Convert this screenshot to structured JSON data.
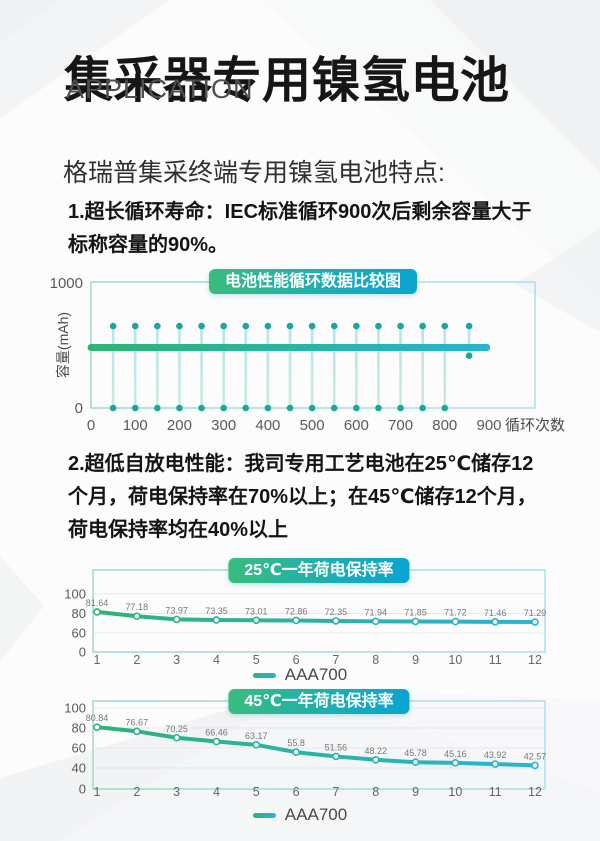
{
  "header": {
    "title": "集采器专用镍氢电池",
    "subtitle": "APPLICATION"
  },
  "intro": {
    "heading": "格瑞普集采终端专用镍氢电池特点:"
  },
  "features": {
    "item1": {
      "line1": "1.超长循环寿命：IEC标准循环900次后剩余容量大于",
      "line2": "标称容量的90%。"
    },
    "item2": {
      "line1": "2.超低自放电性能：我司专用工艺电池在25℃储存12",
      "line2": "个月，荷电保持率在70%以上；在45℃储存12个月，",
      "line3": "荷电保持率均在40%以上"
    }
  },
  "colors": {
    "accent_green": "#2fb375",
    "accent_cyan": "#25b5d8",
    "badge_gradient_start": "#3abc7e",
    "badge_gradient_end": "#0aa4d0",
    "marker_teal": "#1ba89a",
    "stem_light": "#b5e4ef",
    "stem_light2": "#c6ecdf",
    "grid": "#e4e7ea",
    "plot_border_green": "#8fd6b8",
    "plot_border_cyan": "#9edcec",
    "axis_text": "#5a5a5a",
    "data_label_text": "#777777"
  },
  "chart_data": [
    {
      "type": "stem",
      "title": "电池性能循环数据比较图",
      "xlabel": "循环次数",
      "ylabel": "容量(mAh)",
      "ylim": [
        0,
        1000
      ],
      "xlim": [
        0,
        900
      ],
      "x_ticks": [
        0,
        100,
        200,
        300,
        400,
        500,
        600,
        700,
        800,
        900
      ],
      "y_ticks": [
        0,
        1000
      ],
      "grid": false,
      "stems": {
        "x_start": 50,
        "x_end": 800,
        "x_step": 50,
        "top_value": 650,
        "base_value": 0
      },
      "capacity_line": {
        "value": 480,
        "x_from": 0,
        "x_to": 895
      },
      "outlier_point": {
        "x": 855,
        "top_value": 650,
        "low_value": 415
      }
    },
    {
      "type": "line",
      "title": "25℃一年荷电保持率",
      "legend": "AAA700",
      "x": [
        1,
        2,
        3,
        4,
        5,
        6,
        7,
        8,
        9,
        10,
        11,
        12
      ],
      "values": [
        81.64,
        77.18,
        73.97,
        73.35,
        73.01,
        72.86,
        72.35,
        71.94,
        71.85,
        71.72,
        71.46,
        71.29
      ],
      "y_ticks": [
        100,
        80,
        60,
        0
      ],
      "grid": true,
      "legend_position": "bottom-center"
    },
    {
      "type": "line",
      "title": "45℃一年荷电保持率",
      "legend": "AAA700",
      "x": [
        1,
        2,
        3,
        4,
        5,
        6,
        7,
        8,
        9,
        10,
        11,
        12
      ],
      "values": [
        80.84,
        76.67,
        70.25,
        66.46,
        63.17,
        55.8,
        51.56,
        48.22,
        45.78,
        45.16,
        43.92,
        42.57
      ],
      "y_ticks": [
        100,
        80,
        60,
        40,
        0
      ],
      "grid": true,
      "legend_position": "bottom-center"
    }
  ]
}
